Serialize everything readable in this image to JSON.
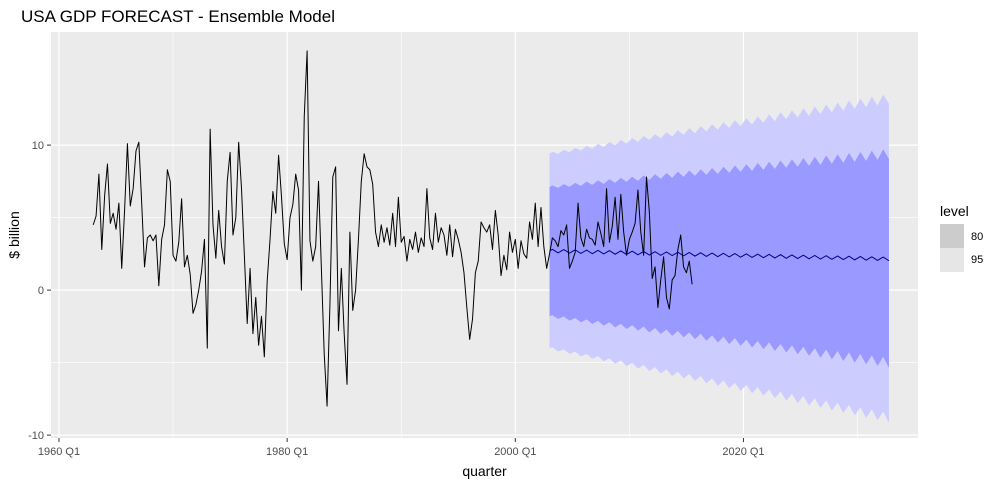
{
  "chart_data": {
    "type": "line",
    "title": "USA GDP FORECAST - Ensemble Model",
    "xlabel": "quarter",
    "ylabel": "$ billion",
    "xlim": [
      1959.3,
      2035.3
    ],
    "ylim": [
      -10.2,
      17.8
    ],
    "x_ticks": [
      {
        "value": 1960,
        "label": "1960 Q1"
      },
      {
        "value": 1980,
        "label": "1980 Q1"
      },
      {
        "value": 2000,
        "label": "2000 Q1"
      },
      {
        "value": 2020,
        "label": "2020 Q1"
      }
    ],
    "y_ticks": [
      {
        "value": -10,
        "label": "-10"
      },
      {
        "value": 0,
        "label": "0"
      },
      {
        "value": 10,
        "label": "10"
      }
    ],
    "grid": true,
    "legend": {
      "title": "level",
      "position": "right",
      "entries": [
        {
          "label": "80",
          "color": "#cccccc"
        },
        {
          "label": "95",
          "color": "#e6e6e6"
        }
      ]
    },
    "colors": {
      "panel": "#ebebeb",
      "grid_major": "#ffffff",
      "history_line": "#000000",
      "forecast_line": "#00008b",
      "band_80": "#9999ff",
      "band_95": "#ccccff"
    },
    "history": {
      "x_start": 1963.0,
      "step": 0.25,
      "values": [
        4.5,
        5.1,
        8.0,
        2.8,
        6.5,
        8.7,
        4.6,
        5.3,
        4.2,
        6.0,
        1.5,
        5.5,
        10.1,
        5.8,
        7.0,
        9.6,
        10.2,
        6.0,
        1.6,
        3.6,
        3.8,
        3.4,
        3.8,
        0.3,
        3.5,
        4.5,
        8.3,
        7.5,
        2.4,
        2.0,
        3.3,
        6.3,
        1.6,
        2.4,
        1.1,
        -1.6,
        -1.0,
        0.0,
        1.3,
        3.5,
        -4.0,
        11.1,
        4.5,
        2.2,
        5.5,
        3.0,
        1.8,
        7.5,
        9.5,
        3.8,
        5.0,
        10.2,
        7.0,
        2.4,
        -2.3,
        1.5,
        -3.0,
        -0.5,
        -3.8,
        -1.8,
        -4.6,
        0.6,
        3.5,
        6.8,
        5.3,
        9.3,
        6.5,
        3.2,
        2.1,
        5.0,
        5.9,
        8.0,
        6.9,
        0.0,
        12.0,
        16.5,
        3.4,
        2.0,
        3.0,
        7.5,
        1.5,
        -4.4,
        -8.0,
        -1.0,
        7.8,
        8.5,
        -2.8,
        1.5,
        -3.0,
        -6.5,
        4.0,
        -1.4,
        0.0,
        3.5,
        7.5,
        9.4,
        8.5,
        8.3,
        7.3,
        4.0,
        3.0,
        4.5,
        3.3,
        4.3,
        3.1,
        5.3,
        3.0,
        6.4,
        3.3,
        3.7,
        2.0,
        3.5,
        2.8,
        4.0,
        2.6,
        3.6,
        3.0,
        7.0,
        3.6,
        2.8,
        5.3,
        3.3,
        4.3,
        3.8,
        2.4,
        4.5,
        2.3,
        4.2,
        3.5,
        2.6,
        1.2,
        -1.2,
        -3.4,
        -2.0,
        1.2,
        2.0,
        4.7,
        4.3,
        4.0,
        4.5,
        2.8,
        5.5,
        3.8,
        1.0,
        2.4,
        1.4,
        4.0,
        2.6,
        3.5,
        1.5,
        3.4,
        2.5,
        2.2,
        4.7,
        3.5,
        6.0,
        3.0,
        5.7,
        3.0,
        1.5,
        2.5,
        3.6,
        3.4,
        3.0,
        4.1,
        3.8,
        4.5,
        1.5,
        2.0,
        2.6,
        6.0,
        3.6,
        3.0,
        4.2,
        3.6,
        3.5,
        3.1,
        4.7,
        3.9,
        3.0,
        7.0,
        3.3,
        4.4,
        6.4,
        3.5,
        6.6,
        4.0,
        2.4,
        3.5,
        4.0,
        4.6,
        6.9,
        4.0,
        2.4,
        7.8,
        5.4,
        0.8,
        1.6,
        -1.2,
        0.7,
        2.3,
        -0.5,
        -1.3,
        0.7,
        1.0,
        2.8,
        3.8,
        1.6,
        1.2,
        2.0,
        0.4
      ]
    },
    "forecast": {
      "x_start": 2003.0,
      "step": 0.25,
      "n": 120,
      "mean_start": 2.7,
      "mean_end": 2.15,
      "seasonal_amplitude": 0.12,
      "lo80_start": -1.8,
      "lo80_end": -5.0,
      "hi80_start": 7.1,
      "hi80_end": 9.4,
      "lo95_start": -4.0,
      "lo95_end": -8.8,
      "hi95_start": 9.4,
      "hi95_end": 13.2,
      "band_amplitude_start": 0.1,
      "band_amplitude_end": 0.35
    }
  }
}
